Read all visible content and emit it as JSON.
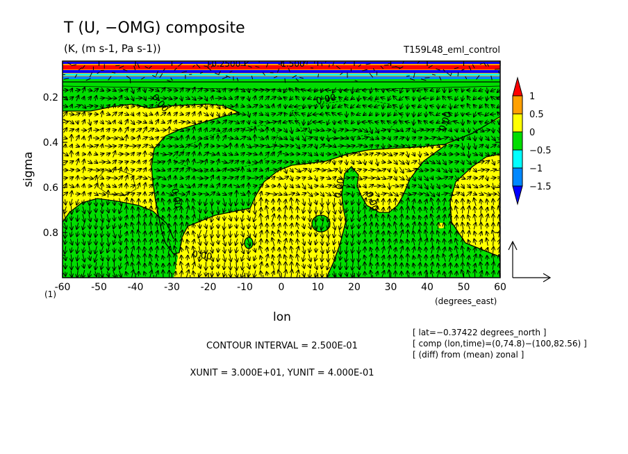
{
  "chart_data": {
    "type": "heatmap",
    "title": "T (U, −OMG) composite",
    "units": "(K, (m s-1, Pa s-1))",
    "run_label": "T159L48_eml_control",
    "xlabel": "lon",
    "x_units": "(degrees_east)",
    "ylabel": "sigma",
    "y_corner_label": "(1)",
    "x_ticks": [
      "-60",
      "-50",
      "-40",
      "-30",
      "-20",
      "-10",
      "0",
      "10",
      "20",
      "30",
      "40",
      "50",
      "60"
    ],
    "y_ticks": [
      "0.2",
      "0.4",
      "0.6",
      "0.8"
    ],
    "xlim": [
      -60,
      60
    ],
    "ylim": [
      1.0,
      0.04
    ],
    "y_inverted": true,
    "colorbar": {
      "labels": [
        "1",
        "0.5",
        "0",
        "−0.5",
        "−1",
        "−1.5"
      ],
      "colors": [
        "#ff0000",
        "#ffa000",
        "#ffff00",
        "#00dd00",
        "#00ffff",
        "#0088ff",
        "#0000ff"
      ],
      "extend": "both"
    },
    "contour_labels": [
      "0.00",
      "0.00",
      "0.00",
      "0.00",
      "0.00",
      "0.00",
      "0.00"
    ],
    "top_labels": [
      "-0.2500",
      "-1.500"
    ],
    "contour_interval": "CONTOUR INTERVAL = 2.500E-01",
    "units_line": "XUNIT = 3.000E+01, YUNIT = 4.000E-01",
    "info_lines": [
      "[ lat=−0.37422 degrees_north ]",
      "[ comp (lon,time)=(0,74.8)−(100,82.56) ]",
      "[ (diff) from (mean) zonal ]"
    ],
    "grid": false
  }
}
